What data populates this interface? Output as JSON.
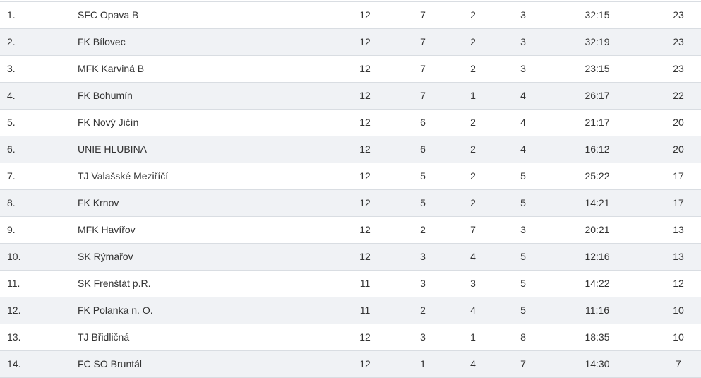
{
  "standings": [
    {
      "rank": "1.",
      "team": "SFC Opava B",
      "played": "12",
      "wins": "7",
      "draws": "2",
      "losses": "3",
      "score": "32:15",
      "points": "23"
    },
    {
      "rank": "2.",
      "team": "FK Bílovec",
      "played": "12",
      "wins": "7",
      "draws": "2",
      "losses": "3",
      "score": "32:19",
      "points": "23"
    },
    {
      "rank": "3.",
      "team": "MFK Karviná B",
      "played": "12",
      "wins": "7",
      "draws": "2",
      "losses": "3",
      "score": "23:15",
      "points": "23"
    },
    {
      "rank": "4.",
      "team": "FK Bohumín",
      "played": "12",
      "wins": "7",
      "draws": "1",
      "losses": "4",
      "score": "26:17",
      "points": "22"
    },
    {
      "rank": "5.",
      "team": "FK Nový Jičín",
      "played": "12",
      "wins": "6",
      "draws": "2",
      "losses": "4",
      "score": "21:17",
      "points": "20"
    },
    {
      "rank": "6.",
      "team": "UNIE HLUBINA",
      "played": "12",
      "wins": "6",
      "draws": "2",
      "losses": "4",
      "score": "16:12",
      "points": "20"
    },
    {
      "rank": "7.",
      "team": "TJ Valašské Meziříčí",
      "played": "12",
      "wins": "5",
      "draws": "2",
      "losses": "5",
      "score": "25:22",
      "points": "17"
    },
    {
      "rank": "8.",
      "team": "FK Krnov",
      "played": "12",
      "wins": "5",
      "draws": "2",
      "losses": "5",
      "score": "14:21",
      "points": "17"
    },
    {
      "rank": "9.",
      "team": "MFK Havířov",
      "played": "12",
      "wins": "2",
      "draws": "7",
      "losses": "3",
      "score": "20:21",
      "points": "13"
    },
    {
      "rank": "10.",
      "team": "SK Rýmařov",
      "played": "12",
      "wins": "3",
      "draws": "4",
      "losses": "5",
      "score": "12:16",
      "points": "13"
    },
    {
      "rank": "11.",
      "team": "SK Frenštát p.R.",
      "played": "11",
      "wins": "3",
      "draws": "3",
      "losses": "5",
      "score": "14:22",
      "points": "12"
    },
    {
      "rank": "12.",
      "team": "FK Polanka n. O.",
      "played": "11",
      "wins": "2",
      "draws": "4",
      "losses": "5",
      "score": "11:16",
      "points": "10"
    },
    {
      "rank": "13.",
      "team": "TJ Břidličná",
      "played": "12",
      "wins": "3",
      "draws": "1",
      "losses": "8",
      "score": "18:35",
      "points": "10"
    },
    {
      "rank": "14.",
      "team": "FC SO Bruntál",
      "played": "12",
      "wins": "1",
      "draws": "4",
      "losses": "7",
      "score": "14:30",
      "points": "7"
    }
  ],
  "colors": {
    "row_alt": "#f0f2f5",
    "border": "#d9dde2",
    "text": "#333333"
  }
}
